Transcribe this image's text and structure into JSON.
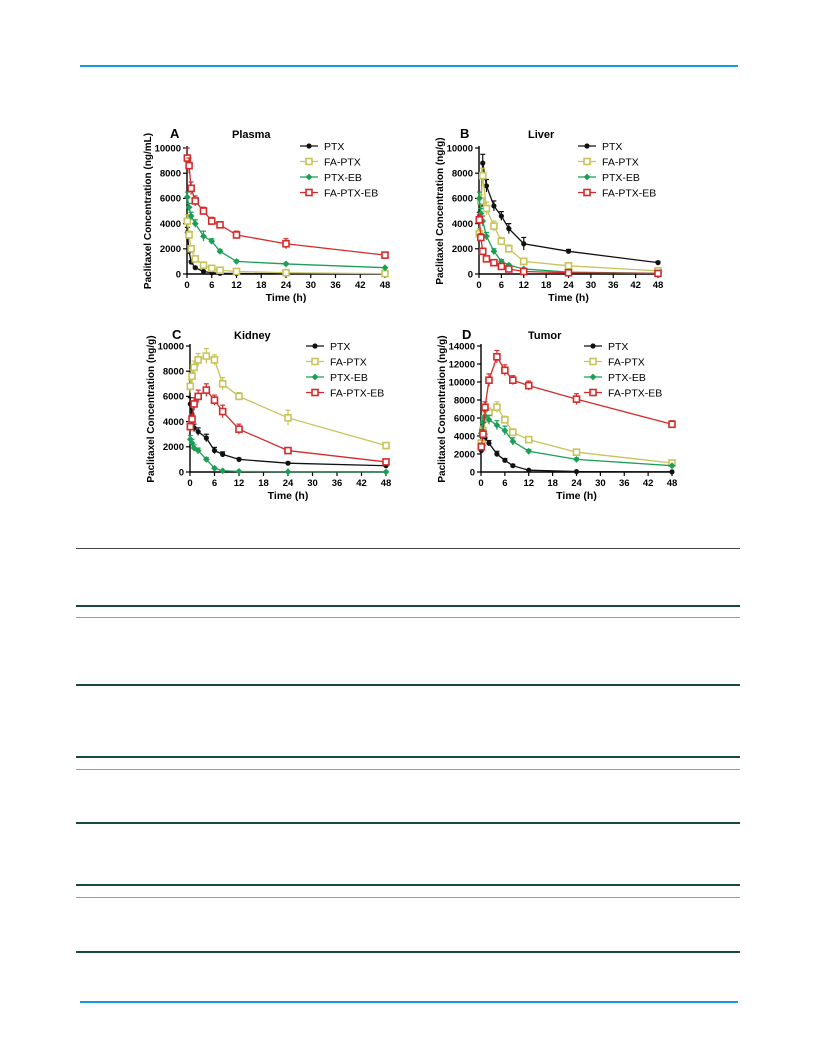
{
  "page": {
    "accent_color": "#1b9ad6",
    "table_rule_color": "#1a4a3a"
  },
  "chart_data": [
    {
      "type": "line",
      "panel_letter": "A",
      "title": "Plasma",
      "ylabel": "Paclitaxel Concentration (ng/mL)",
      "xlabel": "Time (h)",
      "xlim": [
        0,
        48
      ],
      "ylim": [
        0,
        10000
      ],
      "xticks": [
        0,
        6,
        12,
        18,
        24,
        30,
        36,
        42,
        48
      ],
      "yticks": [
        0,
        2000,
        4000,
        6000,
        8000,
        10000
      ],
      "legend_position": "top-right",
      "grid": false,
      "series": [
        {
          "name": "PTX",
          "color": "#111111",
          "marker": "circle",
          "x": [
            0.083,
            0.5,
            1,
            2,
            4,
            6,
            8,
            12,
            24,
            48
          ],
          "y": [
            3300,
            1800,
            950,
            500,
            200,
            100,
            60,
            40,
            20,
            10
          ],
          "err": [
            400,
            200,
            100,
            60,
            40,
            20,
            10,
            10,
            5,
            5
          ]
        },
        {
          "name": "FA-PTX",
          "color": "#c8c35a",
          "marker": "square-open",
          "x": [
            0.083,
            0.5,
            1,
            2,
            4,
            6,
            8,
            12,
            24,
            48
          ],
          "y": [
            4200,
            3100,
            2000,
            1200,
            700,
            450,
            300,
            200,
            100,
            30
          ],
          "err": [
            500,
            300,
            200,
            150,
            100,
            60,
            40,
            30,
            20,
            10
          ]
        },
        {
          "name": "PTX-EB",
          "color": "#1a9f55",
          "marker": "diamond",
          "x": [
            0.083,
            0.5,
            1,
            2,
            4,
            6,
            8,
            12,
            24,
            48
          ],
          "y": [
            6100,
            5300,
            4600,
            4000,
            3000,
            2600,
            1800,
            1000,
            800,
            500
          ],
          "err": [
            400,
            300,
            300,
            300,
            400,
            200,
            150,
            100,
            80,
            50
          ]
        },
        {
          "name": "FA-PTX-EB",
          "color": "#d62a2a",
          "marker": "square-open",
          "x": [
            0.083,
            0.5,
            1,
            2,
            4,
            6,
            8,
            12,
            24,
            48
          ],
          "y": [
            9200,
            8600,
            6800,
            5800,
            5000,
            4200,
            3900,
            3100,
            2400,
            1500
          ],
          "err": [
            800,
            600,
            500,
            400,
            300,
            300,
            250,
            300,
            400,
            150
          ]
        }
      ]
    },
    {
      "type": "line",
      "panel_letter": "B",
      "title": "Liver",
      "ylabel": "Paclitaxel Concentration (ng/g)",
      "xlabel": "Time (h)",
      "xlim": [
        0,
        48
      ],
      "ylim": [
        0,
        10000
      ],
      "xticks": [
        0,
        6,
        12,
        18,
        24,
        30,
        36,
        42,
        48
      ],
      "yticks": [
        0,
        2000,
        4000,
        6000,
        8000,
        10000
      ],
      "legend_position": "top-right",
      "grid": false,
      "series": [
        {
          "name": "PTX",
          "color": "#111111",
          "marker": "circle",
          "x": [
            0.083,
            0.5,
            1,
            2,
            4,
            6,
            8,
            12,
            24,
            48
          ],
          "y": [
            4500,
            5500,
            8800,
            7000,
            5400,
            4600,
            3600,
            2400,
            1800,
            900
          ],
          "err": [
            400,
            500,
            700,
            500,
            400,
            350,
            400,
            500,
            150,
            100
          ]
        },
        {
          "name": "FA-PTX",
          "color": "#c8c35a",
          "marker": "square-open",
          "x": [
            0.083,
            0.5,
            1,
            2,
            4,
            6,
            8,
            12,
            24,
            48
          ],
          "y": [
            3200,
            5800,
            7800,
            5200,
            3800,
            2600,
            2000,
            1000,
            650,
            250
          ],
          "err": [
            400,
            500,
            600,
            500,
            400,
            300,
            300,
            150,
            100,
            50
          ]
        },
        {
          "name": "PTX-EB",
          "color": "#1a9f55",
          "marker": "diamond",
          "x": [
            0.083,
            0.5,
            1,
            2,
            4,
            6,
            8,
            12,
            24,
            48
          ],
          "y": [
            6000,
            4800,
            4200,
            3000,
            1800,
            1000,
            700,
            400,
            150,
            50
          ],
          "err": [
            500,
            400,
            400,
            300,
            200,
            150,
            100,
            60,
            30,
            10
          ]
        },
        {
          "name": "FA-PTX-EB",
          "color": "#d62a2a",
          "marker": "square-open",
          "x": [
            0.083,
            0.5,
            1,
            2,
            4,
            6,
            8,
            12,
            24,
            48
          ],
          "y": [
            4300,
            2900,
            1800,
            1200,
            900,
            600,
            400,
            200,
            100,
            50
          ],
          "err": [
            400,
            300,
            200,
            150,
            100,
            80,
            60,
            40,
            20,
            10
          ]
        }
      ]
    },
    {
      "type": "line",
      "panel_letter": "C",
      "title": "Kidney",
      "ylabel": "Paclitaxel Concentration (ng/g)",
      "xlabel": "Time (h)",
      "xlim": [
        0,
        48
      ],
      "ylim": [
        0,
        10000
      ],
      "xticks": [
        0,
        6,
        12,
        18,
        24,
        30,
        36,
        42,
        48
      ],
      "yticks": [
        0,
        2000,
        4000,
        6000,
        8000,
        10000
      ],
      "legend_position": "top-right",
      "grid": false,
      "series": [
        {
          "name": "PTX",
          "color": "#111111",
          "marker": "circle",
          "x": [
            0.083,
            0.5,
            1,
            2,
            4,
            6,
            8,
            12,
            24,
            48
          ],
          "y": [
            5400,
            4600,
            3500,
            3200,
            2700,
            1700,
            1400,
            1000,
            700,
            500
          ],
          "err": [
            500,
            400,
            300,
            300,
            300,
            250,
            200,
            100,
            80,
            50
          ]
        },
        {
          "name": "FA-PTX",
          "color": "#c8c35a",
          "marker": "square-open",
          "x": [
            0.083,
            0.5,
            1,
            2,
            4,
            6,
            8,
            12,
            24,
            48
          ],
          "y": [
            6800,
            7600,
            8300,
            8900,
            9200,
            8900,
            7000,
            6000,
            4300,
            2100
          ],
          "err": [
            500,
            500,
            500,
            500,
            600,
            400,
            500,
            300,
            600,
            200
          ]
        },
        {
          "name": "PTX-EB",
          "color": "#1a9f55",
          "marker": "diamond",
          "x": [
            0.083,
            0.5,
            1,
            2,
            4,
            6,
            8,
            12,
            24,
            48
          ],
          "y": [
            2600,
            2300,
            1900,
            1700,
            1000,
            300,
            100,
            50,
            20,
            10
          ],
          "err": [
            300,
            300,
            250,
            200,
            150,
            80,
            30,
            10,
            5,
            5
          ]
        },
        {
          "name": "FA-PTX-EB",
          "color": "#d62a2a",
          "marker": "square-open",
          "x": [
            0.083,
            0.5,
            1,
            2,
            4,
            6,
            8,
            12,
            24,
            48
          ],
          "y": [
            3600,
            4200,
            5400,
            6000,
            6500,
            5700,
            4800,
            3400,
            1700,
            800
          ],
          "err": [
            400,
            400,
            500,
            500,
            500,
            400,
            500,
            400,
            150,
            100
          ]
        }
      ]
    },
    {
      "type": "line",
      "panel_letter": "D",
      "title": "Tumor",
      "ylabel": "Paclitaxel Concentration (ng/g)",
      "xlabel": "Time (h)",
      "xlim": [
        0,
        48
      ],
      "ylim": [
        0,
        14000
      ],
      "xticks": [
        0,
        6,
        12,
        18,
        24,
        30,
        36,
        42,
        48
      ],
      "yticks": [
        0,
        2000,
        4000,
        6000,
        8000,
        10000,
        12000,
        14000
      ],
      "legend_position": "top-right",
      "grid": false,
      "series": [
        {
          "name": "PTX",
          "color": "#111111",
          "marker": "circle",
          "x": [
            0.083,
            0.5,
            1,
            2,
            4,
            6,
            8,
            12,
            24,
            48
          ],
          "y": [
            2400,
            3000,
            3800,
            3200,
            2000,
            1300,
            700,
            200,
            50,
            20
          ],
          "err": [
            300,
            300,
            400,
            300,
            300,
            200,
            150,
            50,
            20,
            10
          ]
        },
        {
          "name": "FA-PTX",
          "color": "#c8c35a",
          "marker": "square-open",
          "x": [
            0.083,
            0.5,
            1,
            2,
            4,
            6,
            8,
            12,
            24,
            48
          ],
          "y": [
            3200,
            4600,
            5900,
            6600,
            7200,
            5800,
            4400,
            3600,
            2200,
            1000
          ],
          "err": [
            400,
            500,
            500,
            500,
            600,
            400,
            400,
            300,
            300,
            100
          ]
        },
        {
          "name": "PTX-EB",
          "color": "#1a9f55",
          "marker": "diamond",
          "x": [
            0.083,
            0.5,
            1,
            2,
            4,
            6,
            8,
            12,
            24,
            48
          ],
          "y": [
            4300,
            5500,
            6200,
            5800,
            5200,
            4600,
            3400,
            2300,
            1400,
            700
          ],
          "err": [
            400,
            500,
            500,
            500,
            500,
            500,
            400,
            200,
            150,
            80
          ]
        },
        {
          "name": "FA-PTX-EB",
          "color": "#d62a2a",
          "marker": "square-open",
          "x": [
            0.083,
            0.5,
            1,
            2,
            4,
            6,
            8,
            12,
            24,
            48
          ],
          "y": [
            2800,
            4200,
            7200,
            10200,
            12800,
            11300,
            10200,
            9600,
            8100,
            5300
          ],
          "err": [
            400,
            500,
            600,
            700,
            700,
            600,
            500,
            500,
            600,
            400
          ]
        }
      ]
    }
  ]
}
